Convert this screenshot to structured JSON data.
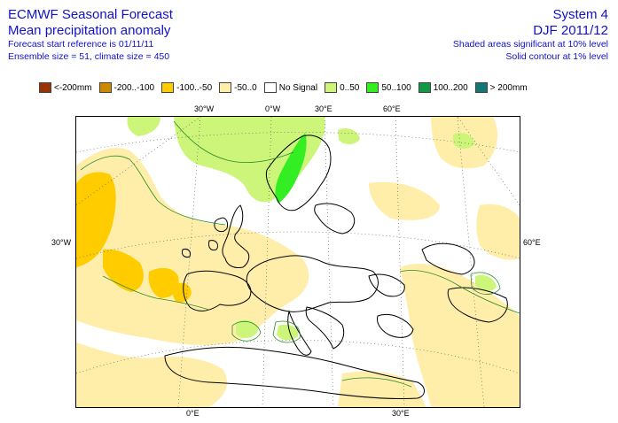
{
  "header": {
    "title": "ECMWF Seasonal Forecast",
    "subtitle": "Mean precipitation anomaly",
    "forecast_start": "Forecast start reference is 01/11/11",
    "ensemble": "Ensemble size = 51, climate size = 450",
    "system": "System 4",
    "period": "DJF 2011/12",
    "note_shaded": "Shaded areas significant at 10% level",
    "note_contour": "Solid contour at 1% level"
  },
  "legend": [
    {
      "label": "<-200mm",
      "color": "#993300"
    },
    {
      "label": "-200..-100",
      "color": "#cc8a00"
    },
    {
      "label": "-100..-50",
      "color": "#ffcc00"
    },
    {
      "label": "-50..0",
      "color": "#ffeeaa"
    },
    {
      "label": "No Signal",
      "color": "#ffffff"
    },
    {
      "label": "0..50",
      "color": "#ccf57a"
    },
    {
      "label": "50..100",
      "color": "#33ee22"
    },
    {
      "label": "100..200",
      "color": "#119944"
    },
    {
      "label": "> 200mm",
      "color": "#117777"
    }
  ],
  "map": {
    "top_labels": [
      "30°W",
      "0°W",
      "30°E",
      "60°E"
    ],
    "left_label": "30°W",
    "right_label": "60°E",
    "bottom_labels": [
      "0°E",
      "30°E"
    ]
  }
}
